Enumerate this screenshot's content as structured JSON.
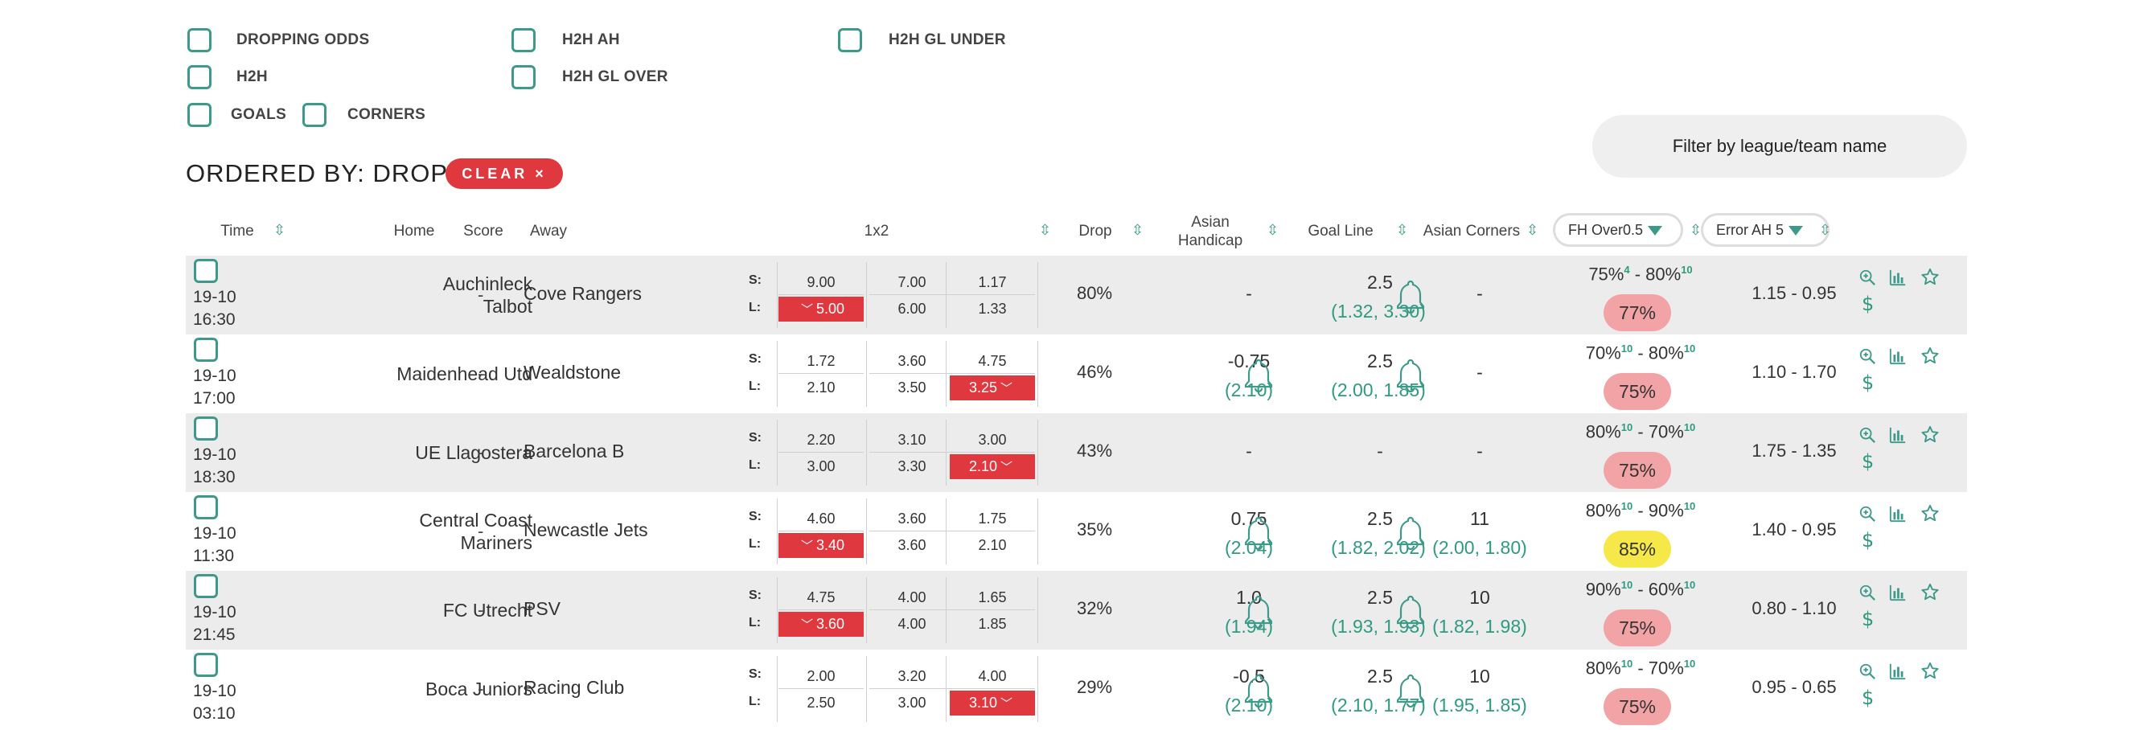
{
  "filters": [
    {
      "label": "DROPPING ODDS"
    },
    {
      "label": "H2H AH"
    },
    {
      "label": "H2H GL UNDER"
    },
    {
      "label": "H2H"
    },
    {
      "label": "H2H GL OVER"
    },
    {
      "label": "GOALS"
    },
    {
      "label": "CORNERS"
    }
  ],
  "ordered_by": "ORDERED BY: DROP",
  "clear_label": "CLEAR ×",
  "filter_search_placeholder": "Filter by league/team name",
  "headers": {
    "time": "Time",
    "home": "Home",
    "score": "Score",
    "away": "Away",
    "x12": "1x2",
    "drop": "Drop",
    "ah_line1": "Asian",
    "ah_line2": "Handicap",
    "goal_line": "Goal Line",
    "asian_corners": "Asian Corners",
    "fh_select": "FH Over0.5",
    "err_select": "Error AH 5"
  },
  "sort_icon": "⇳",
  "odds_labels": {
    "s": "S:",
    "l": "L:"
  },
  "colors": {
    "teal": "#3d9a8a",
    "red": "#e0383f",
    "pink": "#f2a3a6",
    "yellow": "#f7e84a"
  },
  "rows": [
    {
      "date": "19-10",
      "time": "16:30",
      "home_1": "Auchinleck",
      "home_2": "Talbot",
      "score": "-",
      "away": "Cove Rangers",
      "s": [
        "9.00",
        "7.00",
        "1.17"
      ],
      "l": [
        "5.00",
        "6.00",
        "1.33"
      ],
      "red_col": 0,
      "drop": "80%",
      "ah": "-",
      "ah_odds": "",
      "ah_bell": false,
      "gl": "2.5",
      "gl_odds": "(1.32, 3.30)",
      "gl_bell": true,
      "ac": "-",
      "ac_odds": "",
      "fh_a": "75%",
      "fh_a_sup": "4",
      "fh_b": "80%",
      "fh_b_sup": "10",
      "fh_pill": "77%",
      "fh_pill_color": "pink",
      "err": "1.15 - 0.95"
    },
    {
      "date": "19-10",
      "time": "17:00",
      "home_1": "Maidenhead Utd",
      "home_2": "",
      "score": "-",
      "away": "Wealdstone",
      "s": [
        "1.72",
        "3.60",
        "4.75"
      ],
      "l": [
        "2.10",
        "3.50",
        "3.25"
      ],
      "red_col": 2,
      "drop": "46%",
      "ah": "-0.75",
      "ah_odds": "(2.10)",
      "ah_bell": true,
      "gl": "2.5",
      "gl_odds": "(2.00, 1.85)",
      "gl_bell": true,
      "ac": "-",
      "ac_odds": "",
      "fh_a": "70%",
      "fh_a_sup": "10",
      "fh_b": "80%",
      "fh_b_sup": "10",
      "fh_pill": "75%",
      "fh_pill_color": "pink",
      "err": "1.10 - 1.70"
    },
    {
      "date": "19-10",
      "time": "18:30",
      "home_1": "UE Llagostera",
      "home_2": "",
      "score": "-",
      "away": "Barcelona B",
      "s": [
        "2.20",
        "3.10",
        "3.00"
      ],
      "l": [
        "3.00",
        "3.30",
        "2.10"
      ],
      "red_col": 2,
      "drop": "43%",
      "ah": "-",
      "ah_odds": "",
      "ah_bell": false,
      "gl": "-",
      "gl_odds": "",
      "gl_bell": false,
      "ac": "-",
      "ac_odds": "",
      "fh_a": "80%",
      "fh_a_sup": "10",
      "fh_b": "70%",
      "fh_b_sup": "10",
      "fh_pill": "75%",
      "fh_pill_color": "pink",
      "err": "1.75 - 1.35"
    },
    {
      "date": "19-10",
      "time": "11:30",
      "home_1": "Central Coast",
      "home_2": "Mariners",
      "score": "-",
      "away": "Newcastle Jets",
      "s": [
        "4.60",
        "3.60",
        "1.75"
      ],
      "l": [
        "3.40",
        "3.60",
        "2.10"
      ],
      "red_col": 0,
      "drop": "35%",
      "ah": "0.75",
      "ah_odds": "(2.04)",
      "ah_bell": true,
      "gl": "2.5",
      "gl_odds": "(1.82, 2.02)",
      "gl_bell": true,
      "ac": "11",
      "ac_odds": "(2.00, 1.80)",
      "fh_a": "80%",
      "fh_a_sup": "10",
      "fh_b": "90%",
      "fh_b_sup": "10",
      "fh_pill": "85%",
      "fh_pill_color": "yellow",
      "err": "1.40 - 0.95"
    },
    {
      "date": "19-10",
      "time": "21:45",
      "home_1": "FC Utrecht",
      "home_2": "",
      "score": "-",
      "away": "PSV",
      "s": [
        "4.75",
        "4.00",
        "1.65"
      ],
      "l": [
        "3.60",
        "4.00",
        "1.85"
      ],
      "red_col": 0,
      "drop": "32%",
      "ah": "1.0",
      "ah_odds": "(1.94)",
      "ah_bell": true,
      "gl": "2.5",
      "gl_odds": "(1.93, 1.93)",
      "gl_bell": true,
      "ac": "10",
      "ac_odds": "(1.82, 1.98)",
      "fh_a": "90%",
      "fh_a_sup": "10",
      "fh_b": "60%",
      "fh_b_sup": "10",
      "fh_pill": "75%",
      "fh_pill_color": "pink",
      "err": "0.80 - 1.10"
    },
    {
      "date": "19-10",
      "time": "03:10",
      "home_1": "Boca Juniors",
      "home_2": "",
      "score": "-",
      "away": "Racing Club",
      "s": [
        "2.00",
        "3.20",
        "4.00"
      ],
      "l": [
        "2.50",
        "3.00",
        "3.10"
      ],
      "red_col": 2,
      "drop": "29%",
      "ah": "-0.5",
      "ah_odds": "(2.10)",
      "ah_bell": true,
      "gl": "2.5",
      "gl_odds": "(2.10, 1.77)",
      "gl_bell": true,
      "ac": "10",
      "ac_odds": "(1.95, 1.85)",
      "fh_a": "80%",
      "fh_a_sup": "10",
      "fh_b": "70%",
      "fh_b_sup": "10",
      "fh_pill": "75%",
      "fh_pill_color": "pink",
      "err": "0.95 - 0.65"
    }
  ]
}
